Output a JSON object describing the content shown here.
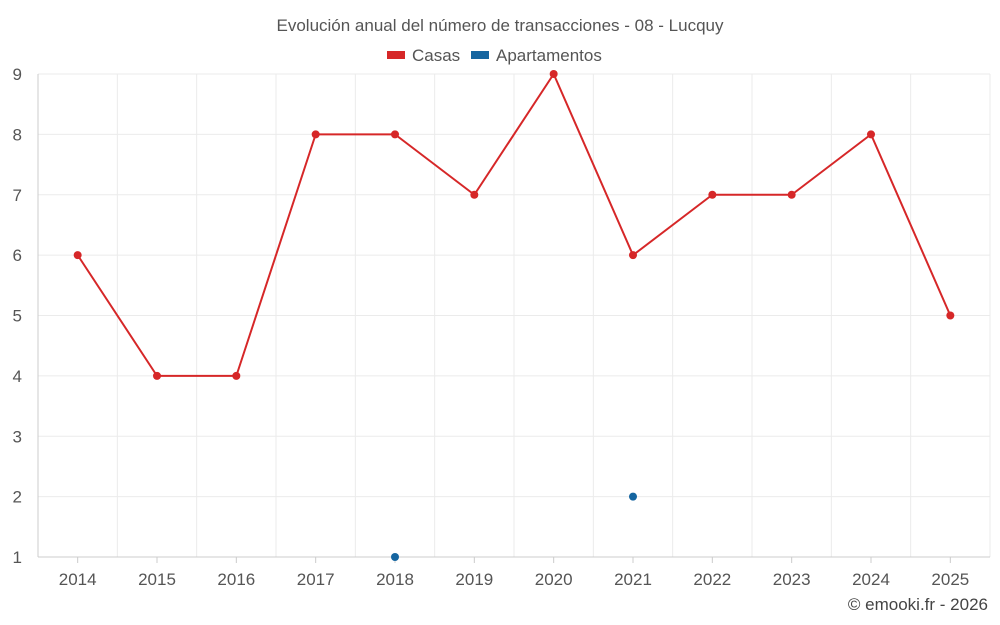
{
  "chart_data": {
    "type": "line",
    "title": "Evolución anual del número de transacciones - 08 - Lucquy",
    "categories": [
      "2014",
      "2015",
      "2016",
      "2017",
      "2018",
      "2019",
      "2020",
      "2021",
      "2022",
      "2023",
      "2024",
      "2025"
    ],
    "yticks": [
      "1",
      "2",
      "3",
      "4",
      "5",
      "6",
      "7",
      "8",
      "9"
    ],
    "ylim": [
      1,
      9
    ],
    "grid": true,
    "legend": "top-center",
    "series": [
      {
        "name": "Casas",
        "color": "#d62728",
        "line": true,
        "values": [
          6,
          4,
          4,
          8,
          8,
          7,
          9,
          6,
          7,
          7,
          8,
          5
        ]
      },
      {
        "name": "Apartamentos",
        "color": "#1565a0",
        "line": false,
        "values": [
          null,
          null,
          null,
          null,
          1,
          null,
          null,
          2,
          null,
          null,
          null,
          null
        ]
      }
    ]
  },
  "credit": "© emooki.fr - 2026"
}
